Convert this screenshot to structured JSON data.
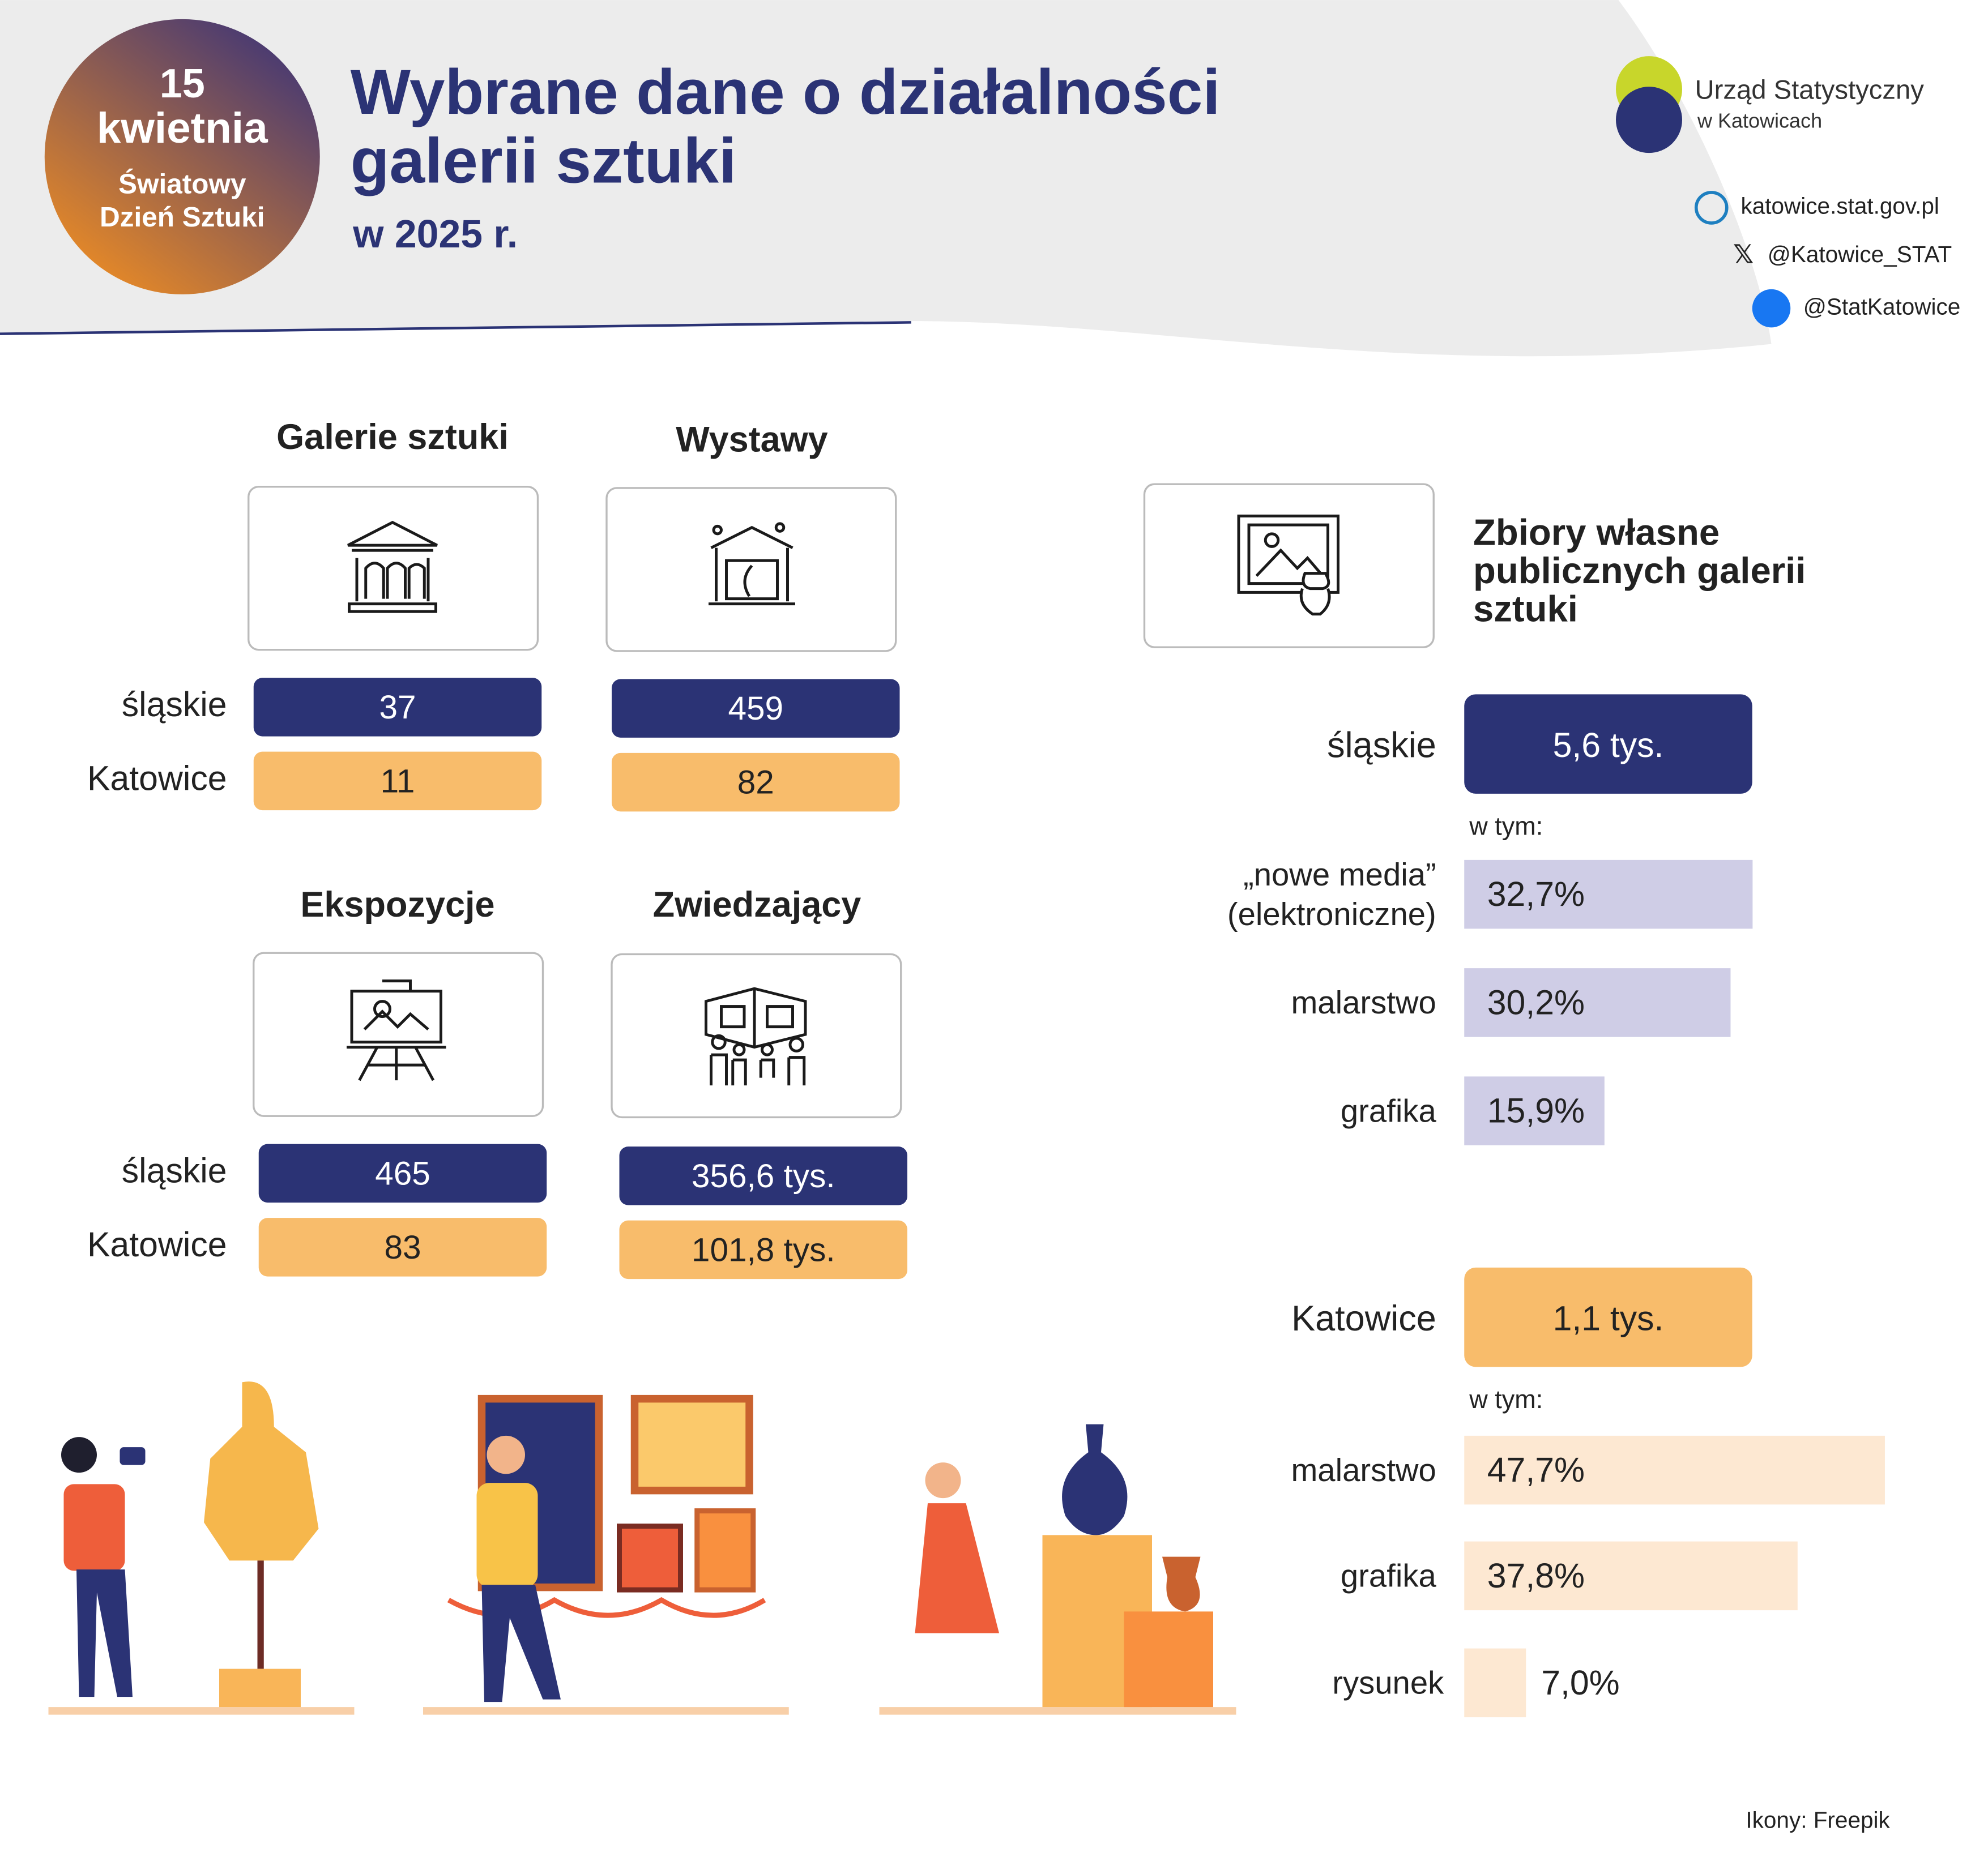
{
  "header": {
    "badge": [
      "15",
      "kwietnia",
      "Światowy",
      "Dzień Sztuki"
    ],
    "title": [
      "Wybrane dane o działalności",
      "galerii sztuki"
    ],
    "subtitle": "w 2025 r."
  },
  "institution": {
    "name": "Urząd Statystyczny",
    "city": "w Katowicach",
    "links": [
      "katowice.stat.gov.pl",
      "@Katowice_STAT",
      "@StatKatowice"
    ]
  },
  "row_labels": [
    "śląskie",
    "Katowice"
  ],
  "panels": [
    {
      "title": "Galerie sztuki",
      "values": [
        "37",
        "11"
      ]
    },
    {
      "title": "Wystawy",
      "values": [
        "459",
        "82"
      ]
    },
    {
      "title": "Ekspozycje",
      "values": [
        "465",
        "83"
      ]
    },
    {
      "title": "Zwiedzający",
      "values": [
        "356,6 tys.",
        "101,8 tys."
      ]
    }
  ],
  "collections": {
    "title": [
      "Zbiory własne",
      "publicznych galerii",
      "sztuki"
    ],
    "groups": [
      {
        "region": "śląskie",
        "total": "5,6 tys.",
        "note": "w tym:",
        "shares": [
          {
            "label": [
              "„nowe media”",
              "(elektroniczne)"
            ],
            "value": 32.7,
            "value_label": "32,7%"
          },
          {
            "label": [
              "malarstwo"
            ],
            "value": 30.2,
            "value_label": "30,2%"
          },
          {
            "label": [
              "grafika"
            ],
            "value": 15.9,
            "value_label": "15,9%"
          }
        ]
      },
      {
        "region": "Katowice",
        "total": "1,1 tys.",
        "note": "w tym:",
        "shares": [
          {
            "label": [
              "malarstwo"
            ],
            "value": 47.7,
            "value_label": "47,7%"
          },
          {
            "label": [
              "grafika"
            ],
            "value": 37.8,
            "value_label": "37,8%"
          },
          {
            "label": [
              "rysunek"
            ],
            "value": 7.0,
            "value_label": "7,0%"
          }
        ]
      }
    ]
  },
  "footer": "Ikony: Freepik"
}
